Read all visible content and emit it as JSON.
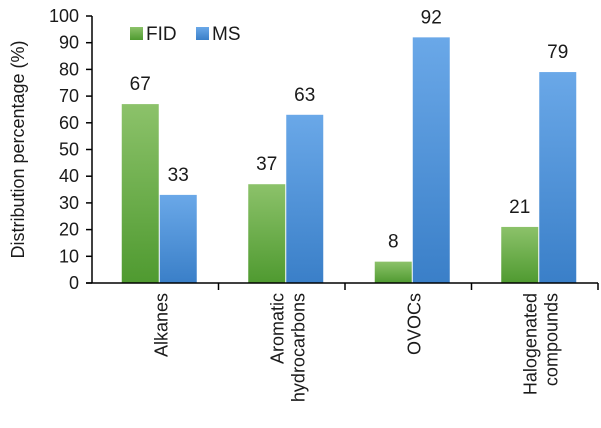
{
  "chart_data": {
    "type": "bar",
    "categories": [
      [
        "Alkanes"
      ],
      [
        "Aromatic",
        "hydrocarbons"
      ],
      [
        "OVOCs"
      ],
      [
        "Halogenated",
        "compounds"
      ]
    ],
    "series": [
      {
        "name": "FID",
        "values": [
          67,
          37,
          8,
          21
        ],
        "color": "#6dae4a"
      },
      {
        "name": "MS",
        "values": [
          33,
          63,
          92,
          79
        ],
        "color": "#4a90d6"
      }
    ],
    "title": "",
    "xlabel": "",
    "ylabel": "Distribution percentage (%)",
    "ylim": [
      0,
      100
    ],
    "yticks": [
      0,
      10,
      20,
      30,
      40,
      50,
      60,
      70,
      80,
      90,
      100
    ],
    "grid": false,
    "legend_position": "top-left"
  }
}
